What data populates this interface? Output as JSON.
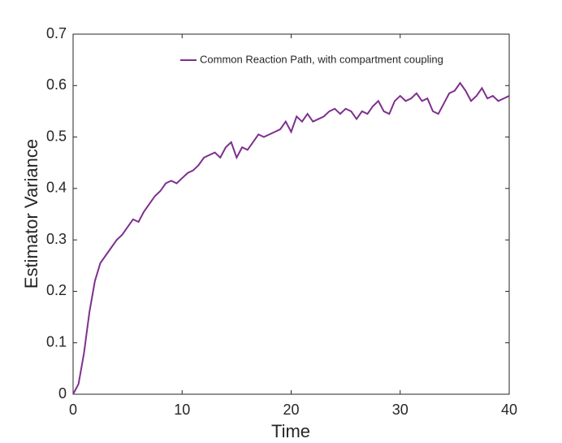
{
  "chart_data": {
    "type": "line",
    "xlabel": "Time",
    "ylabel": "Estimator Variance",
    "x": [
      0,
      0.5,
      1,
      1.5,
      2,
      2.5,
      3,
      3.5,
      4,
      4.5,
      5,
      5.5,
      6,
      6.5,
      7,
      7.5,
      8,
      8.5,
      9,
      9.5,
      10,
      10.5,
      11,
      11.5,
      12,
      12.5,
      13,
      13.5,
      14,
      14.5,
      15,
      15.5,
      16,
      16.5,
      17,
      17.5,
      18,
      18.5,
      19,
      19.5,
      20,
      20.5,
      21,
      21.5,
      22,
      22.5,
      23,
      23.5,
      24,
      24.5,
      25,
      25.5,
      26,
      26.5,
      27,
      27.5,
      28,
      28.5,
      29,
      29.5,
      30,
      30.5,
      31,
      31.5,
      32,
      32.5,
      33,
      33.5,
      34,
      34.5,
      35,
      35.5,
      36,
      36.5,
      37,
      37.5,
      38,
      38.5,
      39,
      39.5,
      40
    ],
    "series": [
      {
        "name": "Common Reaction Path, with compartment coupling",
        "color": "#7e2f8e",
        "values": [
          0,
          0.02,
          0.08,
          0.16,
          0.22,
          0.255,
          0.27,
          0.285,
          0.3,
          0.31,
          0.325,
          0.34,
          0.335,
          0.355,
          0.37,
          0.385,
          0.395,
          0.41,
          0.415,
          0.41,
          0.42,
          0.43,
          0.435,
          0.445,
          0.46,
          0.465,
          0.47,
          0.46,
          0.48,
          0.49,
          0.46,
          0.48,
          0.475,
          0.49,
          0.505,
          0.5,
          0.505,
          0.51,
          0.515,
          0.53,
          0.51,
          0.54,
          0.53,
          0.545,
          0.53,
          0.535,
          0.54,
          0.55,
          0.555,
          0.545,
          0.555,
          0.55,
          0.535,
          0.55,
          0.545,
          0.56,
          0.57,
          0.55,
          0.545,
          0.57,
          0.58,
          0.57,
          0.575,
          0.585,
          0.57,
          0.575,
          0.55,
          0.545,
          0.565,
          0.585,
          0.59,
          0.605,
          0.59,
          0.57,
          0.58,
          0.595,
          0.575,
          0.58,
          0.57,
          0.575,
          0.58
        ]
      }
    ],
    "xlim": [
      0,
      40
    ],
    "xticks": [
      0,
      10,
      20,
      30,
      40
    ],
    "ylim": [
      0,
      0.7
    ],
    "yticks": [
      0,
      0.1,
      0.2,
      0.3,
      0.4,
      0.5,
      0.6,
      0.7
    ],
    "legend": "top-right"
  }
}
